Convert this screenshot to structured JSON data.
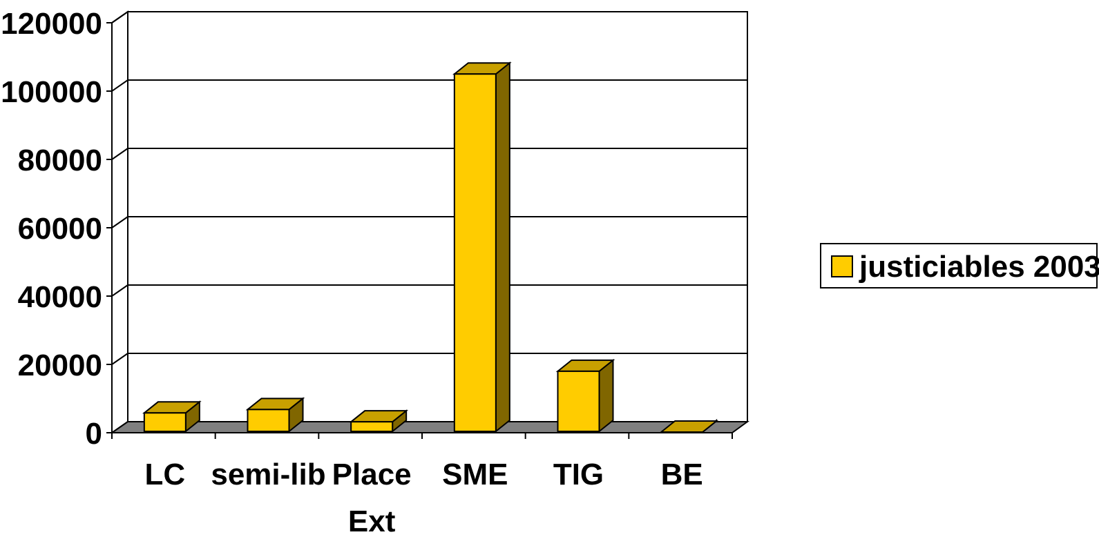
{
  "chart_data": {
    "type": "bar",
    "title": "",
    "xlabel": "",
    "ylabel": "",
    "categories": [
      [
        "LC"
      ],
      [
        "semi-lib"
      ],
      [
        "Place",
        "Ext"
      ],
      [
        "SME"
      ],
      [
        "TIG"
      ],
      [
        "BE"
      ]
    ],
    "series": [
      {
        "name": "justiciables 2003",
        "values": [
          5800,
          6800,
          3200,
          105000,
          18000,
          200
        ],
        "color": "#FFCC00",
        "side_color": "#806600",
        "top_color": "#C8A000"
      }
    ],
    "ylim": [
      0,
      120000
    ],
    "yticks": [
      "0",
      "20000",
      "40000",
      "60000",
      "80000",
      "100000",
      "120000"
    ],
    "grid": true,
    "legend_position": "right",
    "floor_color": "#808080",
    "plot_background": "#ffffff"
  }
}
